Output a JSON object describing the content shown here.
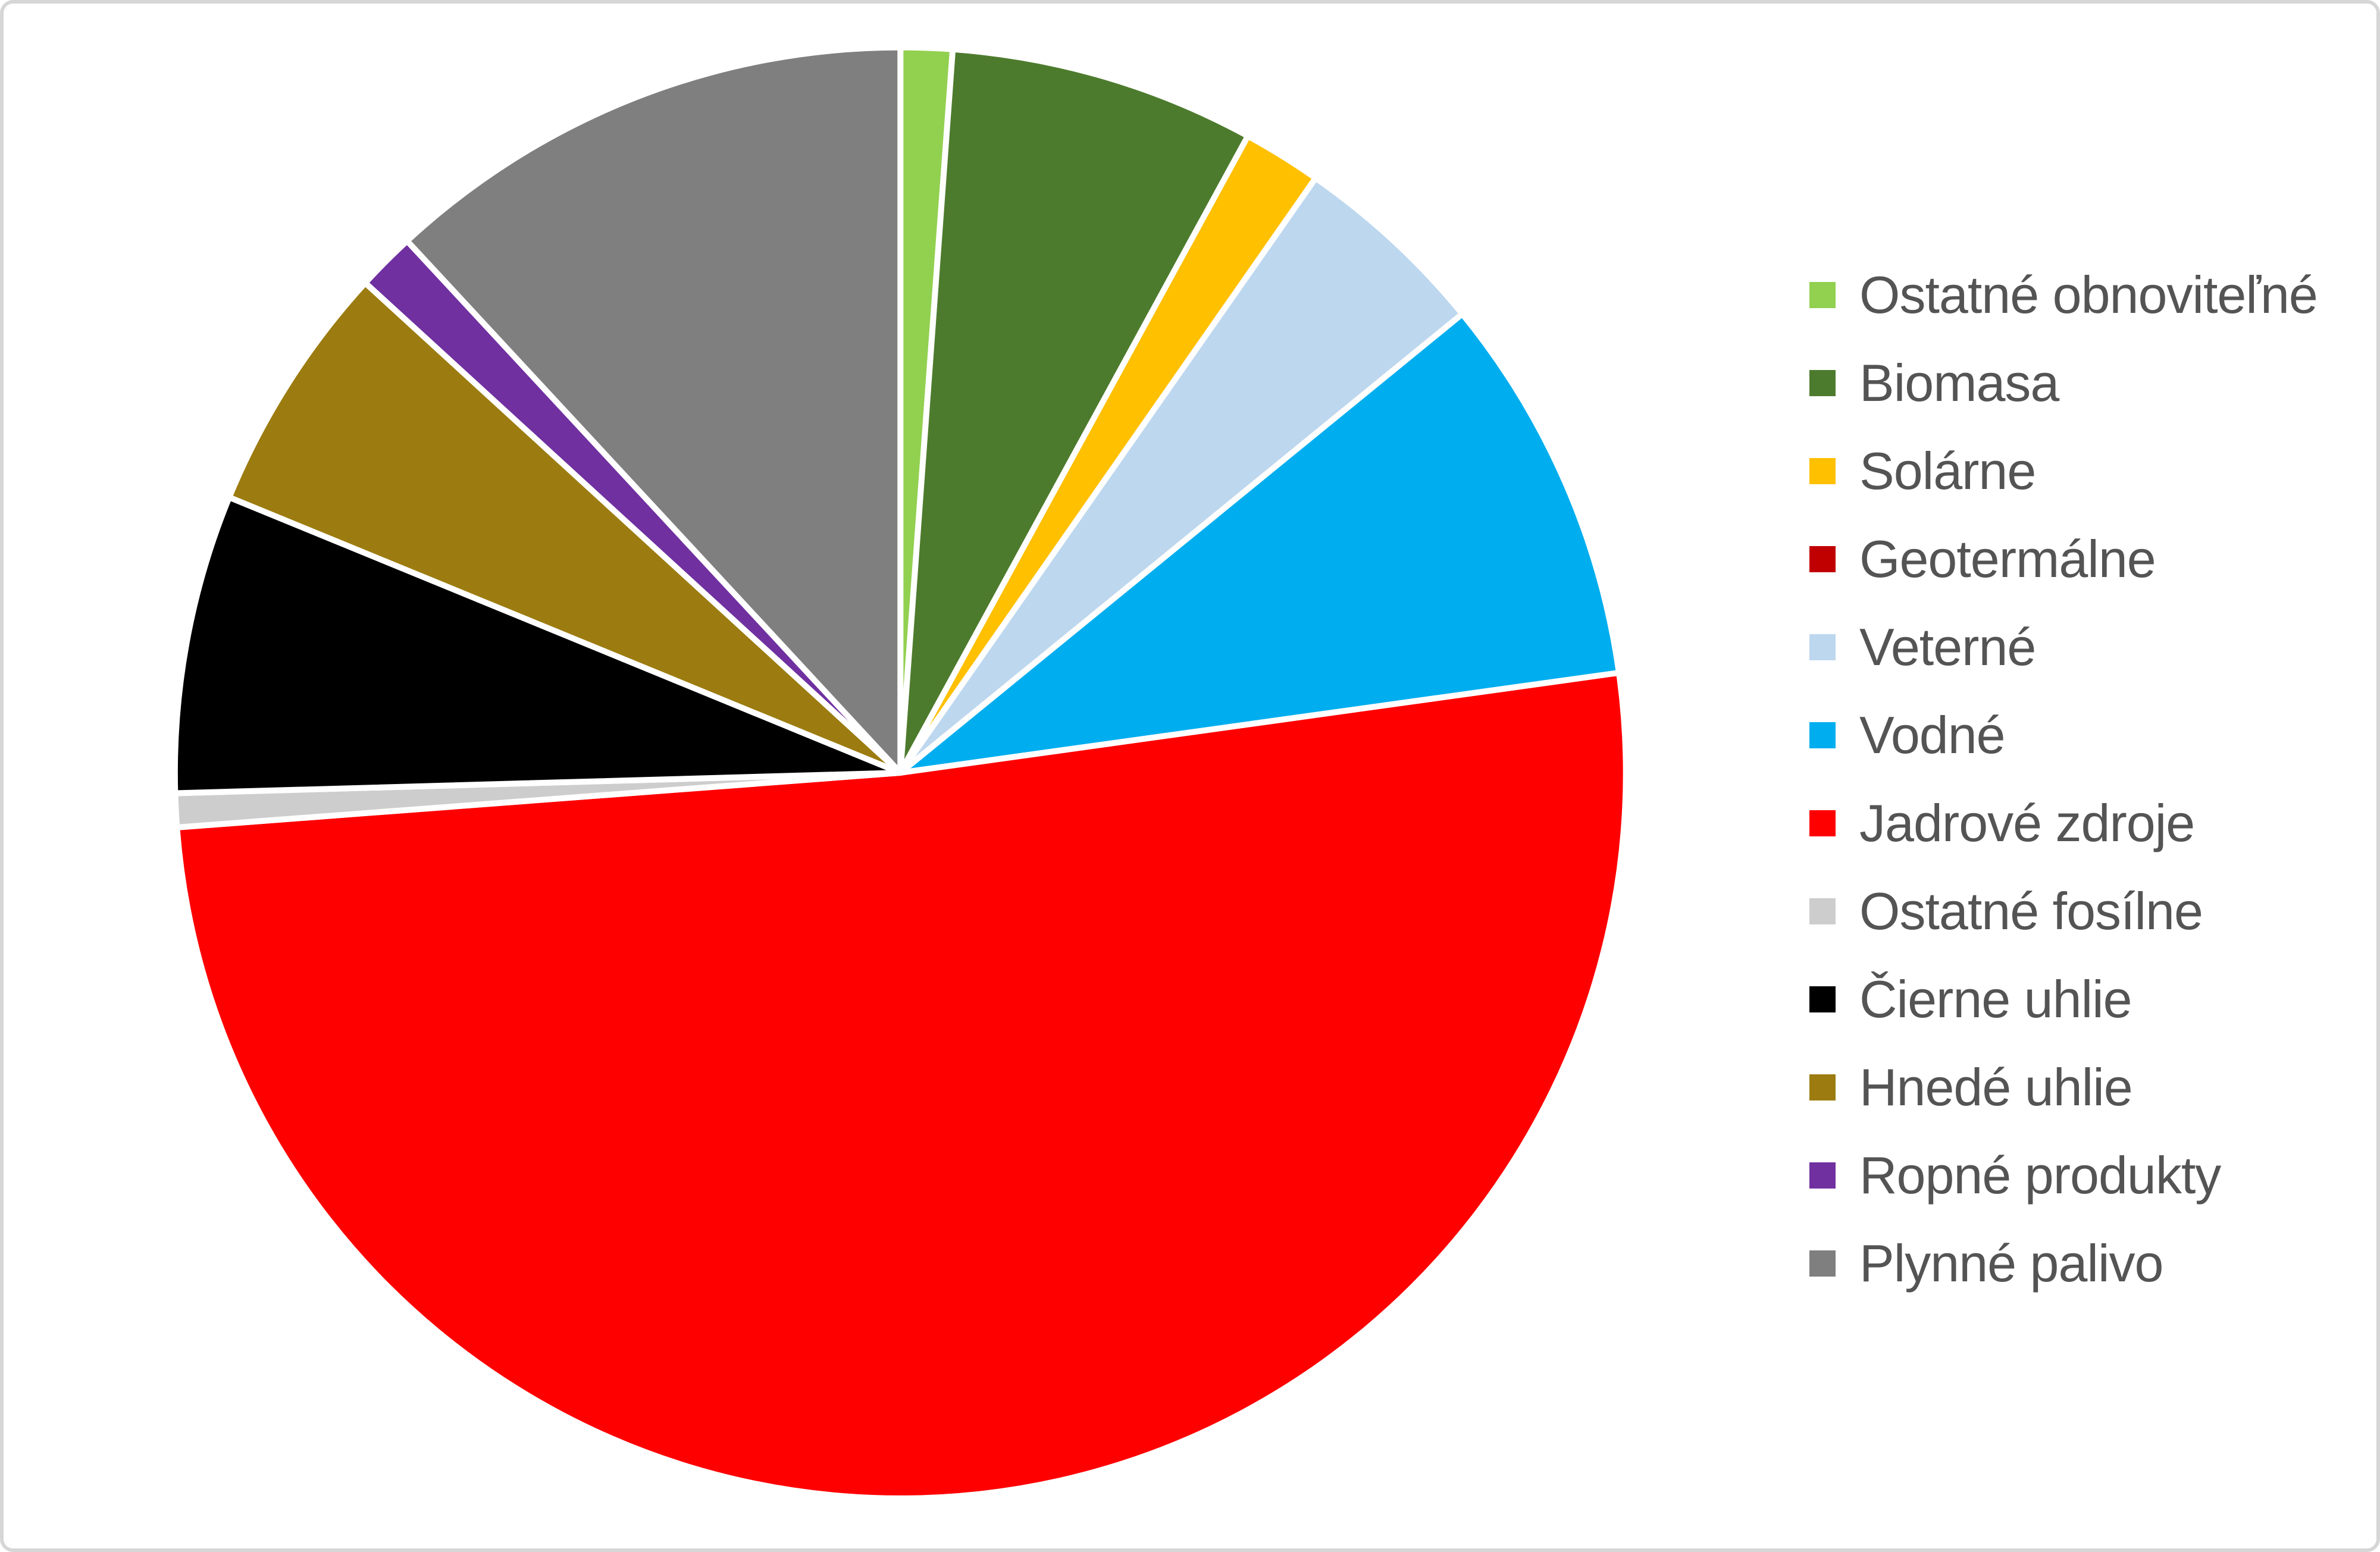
{
  "chart_data": {
    "type": "pie",
    "title": "",
    "direction": "clockwise",
    "start_angle_deg": 0,
    "legend_position": "right",
    "grid": false,
    "slice_border_color": "#FFFFFF",
    "legend_text_color": "#545454",
    "canvas_border_color": "#D6D6D6",
    "slices": [
      {
        "label": "Ostatné obnoviteľné",
        "value_pct": 1.15,
        "color": "#92D050"
      },
      {
        "label": "Biomasa",
        "value_pct": 6.8,
        "color": "#4D7B2D"
      },
      {
        "label": "Solárne",
        "value_pct": 1.75,
        "color": "#FFC000"
      },
      {
        "label": "Geotermálne",
        "value_pct": 0.0,
        "color": "#C00000"
      },
      {
        "label": "Veterné",
        "value_pct": 4.4,
        "color": "#BDD7EE"
      },
      {
        "label": "Vodné",
        "value_pct": 8.7,
        "color": "#00AEEF"
      },
      {
        "label": "Jadrové zdroje",
        "value_pct": 51.0,
        "color": "#FE0000"
      },
      {
        "label": "Ostatné fosílne",
        "value_pct": 0.75,
        "color": "#CDCDCD"
      },
      {
        "label": "Čierne uhlie",
        "value_pct": 6.65,
        "color": "#000000"
      },
      {
        "label": "Hnedé uhlie",
        "value_pct": 5.6,
        "color": "#9C7C10"
      },
      {
        "label": "Ropné produkty",
        "value_pct": 1.3,
        "color": "#7030A0"
      },
      {
        "label": "Plynné palivo",
        "value_pct": 11.9,
        "color": "#7F7F7F"
      }
    ]
  }
}
